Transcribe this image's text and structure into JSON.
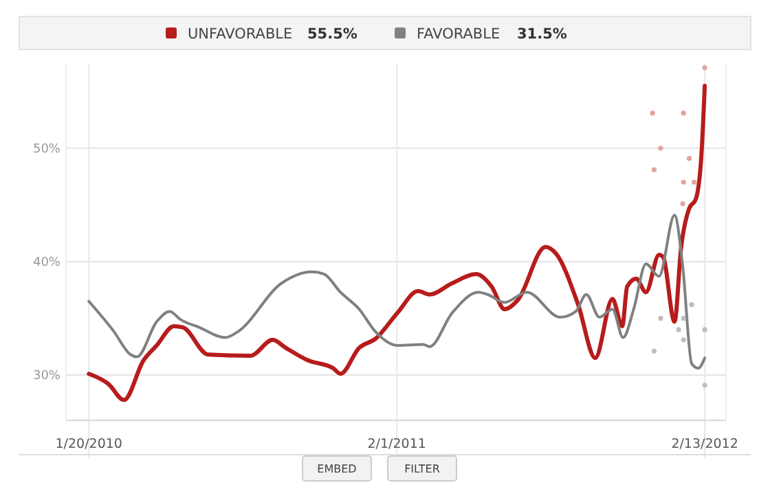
{
  "chart_data": {
    "type": "line",
    "legend": "top",
    "grid": true,
    "marker": "none",
    "line_style": "solid",
    "xlim": [
      "2009-12-23",
      "2012-03-10"
    ],
    "ylim": [
      26,
      57.5
    ],
    "xticks": [
      {
        "value": "2010-01-20",
        "label": "1/20/2010"
      },
      {
        "value": "2011-02-01",
        "label": "2/1/2011"
      },
      {
        "value": "2012-02-13",
        "label": "2/13/2012"
      }
    ],
    "yticks": [
      {
        "value": 30,
        "label": "30%"
      },
      {
        "value": 40,
        "label": "40%"
      },
      {
        "value": 50,
        "label": "50%"
      }
    ],
    "annotations": [
      "55.5%",
      "31.5%",
      "EMBED",
      "FILTER"
    ],
    "series": [
      {
        "name": "UNFAVORABLE",
        "color": "#b71c1c",
        "x": [
          "2010-01-20",
          "2010-02-13",
          "2010-03-04",
          "2010-03-28",
          "2010-04-13",
          "2010-05-04",
          "2010-05-15",
          "2010-06-15",
          "2010-08-06",
          "2010-09-02",
          "2010-09-18",
          "2010-10-15",
          "2010-11-15",
          "2010-11-24",
          "2010-12-17",
          "2011-01-06",
          "2011-02-02",
          "2011-02-27",
          "2011-03-13",
          "2011-04-10",
          "2011-05-09",
          "2011-05-28",
          "2011-06-13",
          "2011-06-29",
          "2011-08-02",
          "2011-08-15",
          "2011-09-11",
          "2011-10-02",
          "2011-10-23",
          "2011-11-04",
          "2011-11-10",
          "2011-11-21",
          "2011-12-03",
          "2011-12-19",
          "2011-12-24",
          "2012-01-07",
          "2012-01-15",
          "2012-01-25",
          "2012-02-02",
          "2012-02-09",
          "2012-02-13"
        ],
        "values": [
          30.1,
          29.2,
          27.8,
          31.3,
          32.6,
          34.3,
          34.2,
          31.8,
          31.7,
          33.1,
          32.4,
          31.3,
          30.6,
          30.1,
          32.4,
          33.2,
          35.5,
          37.4,
          37.1,
          38.1,
          38.9,
          37.8,
          35.8,
          36.6,
          41.3,
          40.7,
          36.2,
          31.5,
          36.7,
          34.3,
          37.8,
          38.5,
          37.3,
          40.6,
          40.4,
          34.7,
          41.2,
          44.7,
          45.5,
          49.5,
          55.5
        ]
      },
      {
        "name": "FAVORABLE",
        "color": "#808080",
        "x": [
          "2010-01-20",
          "2010-02-19",
          "2010-03-12",
          "2010-03-20",
          "2010-04-13",
          "2010-04-29",
          "2010-05-12",
          "2010-06-04",
          "2010-07-06",
          "2010-07-21",
          "2010-09-13",
          "2010-10-20",
          "2010-11-04",
          "2010-11-24",
          "2010-12-17",
          "2011-01-06",
          "2011-02-02",
          "2011-03-05",
          "2011-03-13",
          "2011-04-10",
          "2011-05-12",
          "2011-05-23",
          "2011-06-13",
          "2011-07-10",
          "2011-08-20",
          "2011-09-08",
          "2011-09-21",
          "2011-10-07",
          "2011-10-23",
          "2011-11-05",
          "2011-11-18",
          "2011-12-03",
          "2011-12-19",
          "2012-01-07",
          "2012-01-17",
          "2012-01-28",
          "2012-02-05",
          "2012-02-13"
        ],
        "values": [
          36.5,
          33.9,
          31.8,
          31.6,
          34.7,
          35.6,
          34.9,
          34.2,
          33.3,
          33.8,
          38.1,
          39.1,
          38.9,
          37.3,
          35.8,
          33.8,
          32.6,
          32.7,
          32.5,
          35.5,
          37.3,
          37.1,
          36.4,
          37.3,
          35.1,
          35.6,
          37.1,
          35.1,
          35.8,
          33.3,
          35.8,
          39.8,
          38.7,
          44.1,
          39.6,
          31.0,
          30.6,
          31.5
        ]
      },
      {
        "type": "scatter",
        "marker": "circle",
        "color": "#e3a3a3",
        "x": [
          "2011-12-11",
          "2011-12-13",
          "2011-12-21",
          "2012-01-17",
          "2012-01-18",
          "2012-01-18",
          "2012-01-25",
          "2012-01-31",
          "2012-02-13"
        ],
        "values": [
          53.1,
          48.1,
          50.0,
          45.1,
          53.1,
          47.0,
          49.1,
          47.0,
          57.1
        ]
      },
      {
        "type": "scatter",
        "marker": "circle",
        "color": "#bdbdbd",
        "x": [
          "2011-12-13",
          "2011-12-21",
          "2012-01-12",
          "2012-01-18",
          "2012-01-18",
          "2012-01-28",
          "2012-02-13",
          "2012-02-13"
        ],
        "values": [
          32.1,
          35.0,
          34.0,
          35.0,
          33.1,
          36.2,
          34.0,
          29.1
        ]
      }
    ]
  }
}
